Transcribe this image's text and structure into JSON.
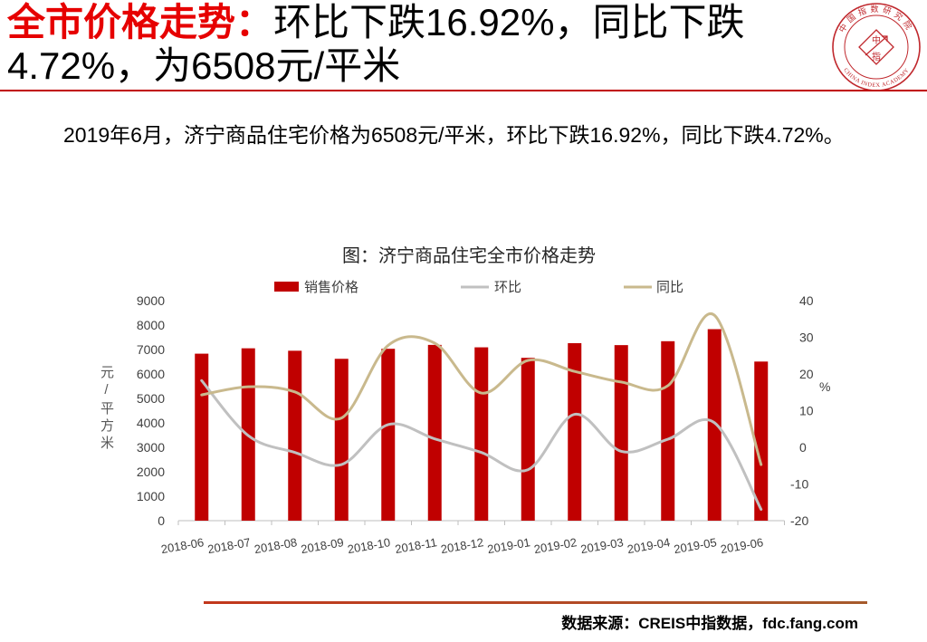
{
  "slide": {
    "title": {
      "highlight": "全市价格走势：",
      "line1": "环比下跌16.92%，同比下跌",
      "line2": "4.72%，为6508元/平米"
    },
    "summary": "2019年6月，济宁商品住宅价格为6508元/平米，环比下跌16.92%，同比下跌4.72%。",
    "source": "数据来源：CREIS中指数据，fdc.fang.com",
    "logo": {
      "ring_top": "中国指数研究院",
      "ring_bottom": "CHINA INDEX ACADEMY",
      "center_top": "中",
      "center_bottom": "指"
    }
  },
  "colors": {
    "title_highlight": "#e60000",
    "logo": "#c0282d"
  },
  "chart_data": {
    "type": "bar",
    "title": "图：济宁商品住宅全市价格走势",
    "categories": [
      "2018-06",
      "2018-07",
      "2018-08",
      "2018-09",
      "2018-10",
      "2018-11",
      "2018-12",
      "2019-01",
      "2019-02",
      "2019-03",
      "2019-04",
      "2019-05",
      "2019-06"
    ],
    "series": [
      {
        "name": "销售价格",
        "type": "bar",
        "axis": "left",
        "color": "#c00000",
        "values": [
          6830,
          7050,
          6950,
          6620,
          7030,
          7190,
          7090,
          6660,
          7260,
          7180,
          7340,
          7833,
          6508
        ]
      },
      {
        "name": "环比",
        "type": "line",
        "axis": "right",
        "smooth": true,
        "color": "#c0c0c0",
        "values": [
          18.2,
          3.2,
          -1.4,
          -4.7,
          6.2,
          2.3,
          -1.4,
          -6.1,
          9.0,
          -1.1,
          2.2,
          6.7,
          -16.92
        ]
      },
      {
        "name": "同比",
        "type": "line",
        "axis": "right",
        "smooth": true,
        "color": "#c9b98d",
        "values": [
          14.3,
          16.5,
          15.1,
          8.0,
          27.8,
          28.4,
          14.8,
          23.7,
          20.7,
          17.8,
          16.8,
          36.0,
          -4.72
        ]
      }
    ],
    "ylabel": "元/平方米",
    "y2label": "%",
    "ylim": [
      0,
      9000
    ],
    "y_ticks": [
      0,
      1000,
      2000,
      3000,
      4000,
      5000,
      6000,
      7000,
      8000,
      9000
    ],
    "y2lim": [
      -20,
      40
    ],
    "y2_ticks": [
      -20,
      -10,
      0,
      10,
      20,
      30,
      40
    ],
    "grid": false,
    "legend": "top"
  }
}
